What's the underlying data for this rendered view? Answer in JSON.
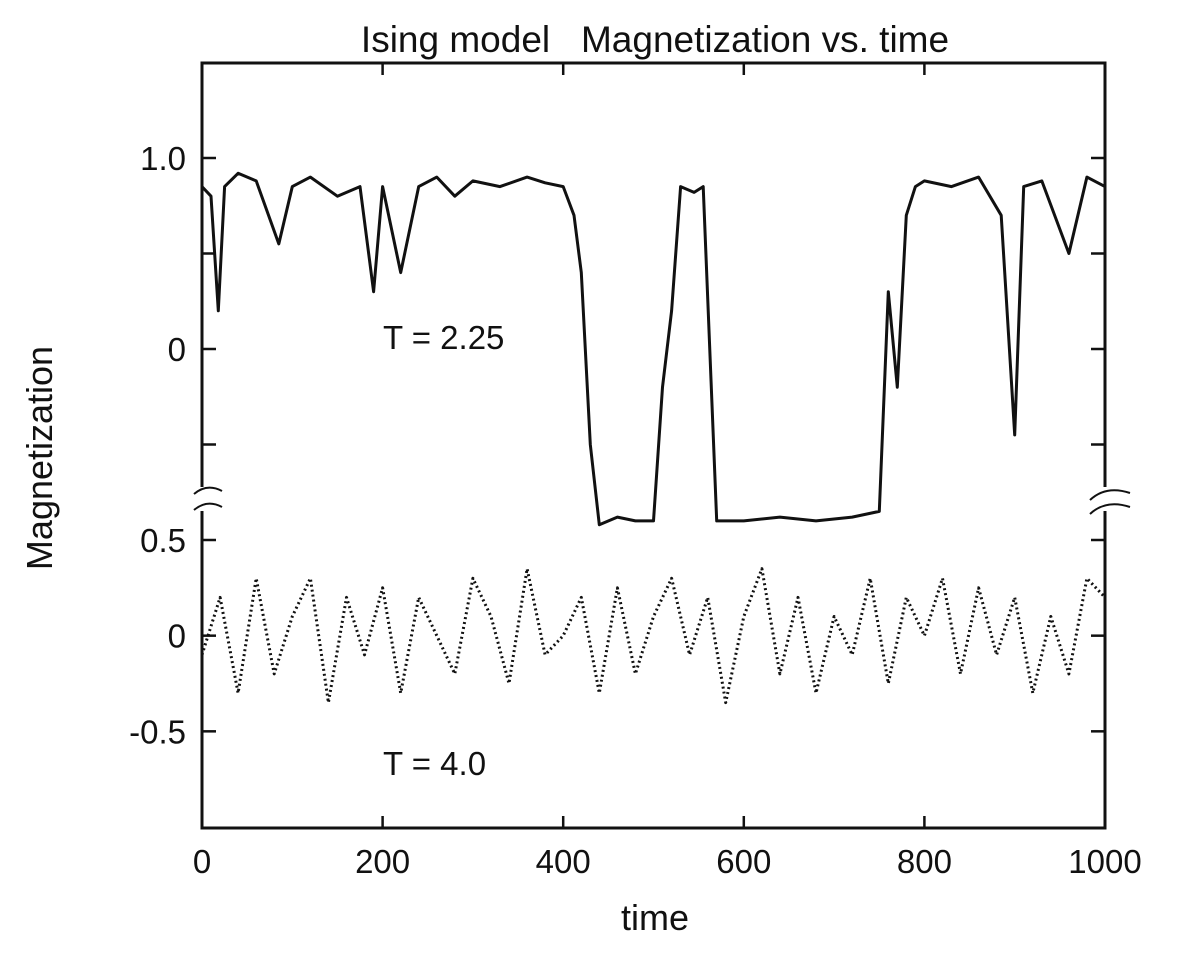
{
  "chart_data": {
    "type": "line",
    "title": "Ising model   Magnetization vs. time",
    "xlabel": "time",
    "ylabel": "Magnetization",
    "xlim": [
      0,
      1000
    ],
    "x_ticks": [
      0,
      200,
      400,
      600,
      800,
      1000
    ],
    "x_tick_labels": [
      "0",
      "200",
      "400",
      "600",
      "800",
      "1000"
    ],
    "grid": false,
    "axis_break": true,
    "panels": [
      {
        "name": "upper",
        "ylim": [
          -1.0,
          1.0
        ],
        "y_ticks": [
          1.0,
          0.5,
          0,
          -0.5
        ],
        "y_tick_labels": [
          "1.0",
          "",
          "0",
          ""
        ]
      },
      {
        "name": "lower",
        "ylim": [
          -1.0,
          0.5
        ],
        "y_ticks": [
          0.5,
          0,
          -0.5
        ],
        "y_tick_labels": [
          "0.5",
          "0",
          "-0.5"
        ]
      }
    ],
    "series": [
      {
        "panel": "upper",
        "style": "solid",
        "annotation": "T = 2.25",
        "x": [
          0,
          10,
          18,
          25,
          40,
          60,
          85,
          100,
          120,
          150,
          175,
          190,
          200,
          220,
          240,
          260,
          280,
          300,
          330,
          360,
          380,
          400,
          412,
          420,
          430,
          440,
          460,
          480,
          500,
          510,
          520,
          530,
          545,
          555,
          570,
          600,
          640,
          680,
          720,
          750,
          760,
          770,
          780,
          790,
          800,
          830,
          860,
          885,
          900,
          910,
          930,
          960,
          980,
          1000
        ],
        "y": [
          0.85,
          0.8,
          0.2,
          0.85,
          0.92,
          0.88,
          0.55,
          0.85,
          0.9,
          0.8,
          0.85,
          0.3,
          0.85,
          0.4,
          0.85,
          0.9,
          0.8,
          0.88,
          0.85,
          0.9,
          0.87,
          0.85,
          0.7,
          0.4,
          -0.5,
          -0.92,
          -0.88,
          -0.9,
          -0.9,
          -0.2,
          0.2,
          0.85,
          0.82,
          0.85,
          -0.9,
          -0.9,
          -0.88,
          -0.9,
          -0.88,
          -0.85,
          0.3,
          -0.2,
          0.7,
          0.85,
          0.88,
          0.85,
          0.9,
          0.7,
          -0.45,
          0.85,
          0.88,
          0.5,
          0.9,
          0.85
        ]
      },
      {
        "panel": "lower",
        "style": "dotted",
        "annotation": "T = 4.0",
        "x": [
          0,
          20,
          40,
          60,
          80,
          100,
          120,
          140,
          160,
          180,
          200,
          220,
          240,
          260,
          280,
          300,
          320,
          340,
          360,
          380,
          400,
          420,
          440,
          460,
          480,
          500,
          520,
          540,
          560,
          580,
          600,
          620,
          640,
          660,
          680,
          700,
          720,
          740,
          760,
          780,
          800,
          820,
          840,
          860,
          880,
          900,
          920,
          940,
          960,
          980,
          1000
        ],
        "y": [
          -0.1,
          0.2,
          -0.3,
          0.3,
          -0.2,
          0.1,
          0.3,
          -0.35,
          0.2,
          -0.1,
          0.25,
          -0.3,
          0.2,
          0.0,
          -0.2,
          0.3,
          0.1,
          -0.25,
          0.35,
          -0.1,
          0.0,
          0.2,
          -0.3,
          0.25,
          -0.2,
          0.1,
          0.3,
          -0.1,
          0.2,
          -0.35,
          0.1,
          0.35,
          -0.2,
          0.2,
          -0.3,
          0.1,
          -0.1,
          0.3,
          -0.25,
          0.2,
          0.0,
          0.3,
          -0.2,
          0.25,
          -0.1,
          0.2,
          -0.3,
          0.1,
          -0.2,
          0.3,
          0.2
        ]
      }
    ]
  }
}
